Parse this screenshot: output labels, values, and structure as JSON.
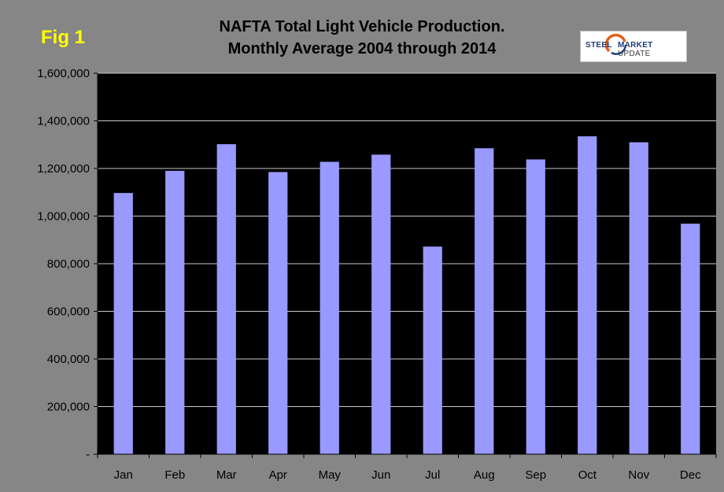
{
  "fig_label": "Fig 1",
  "title_line1": "NAFTA Total Light Vehicle Production.",
  "title_line2": "Monthly Average 2004 through 2014",
  "logo": {
    "word1": "STEEL",
    "word2": "MARKET",
    "word3": "UPDATE"
  },
  "colors": {
    "background": "#868686",
    "plot_area": "#000000",
    "bar": "#9999ff",
    "gridline": "#c8c8c8",
    "fig_label": "#ffff00"
  },
  "chart_data": {
    "type": "bar",
    "title": "NAFTA Total Light Vehicle Production. Monthly Average 2004 through 2014",
    "categories": [
      "Jan",
      "Feb",
      "Mar",
      "Apr",
      "May",
      "Jun",
      "Jul",
      "Aug",
      "Sep",
      "Oct",
      "Nov",
      "Dec"
    ],
    "values": [
      1097000,
      1190000,
      1302000,
      1185000,
      1228000,
      1258000,
      872000,
      1285000,
      1238000,
      1335000,
      1310000,
      968000
    ],
    "ylim": [
      0,
      1600000
    ],
    "yticks": [
      0,
      200000,
      400000,
      600000,
      800000,
      1000000,
      1200000,
      1400000,
      1600000
    ],
    "ytick_labels": [
      "-",
      "200,000",
      "400,000",
      "600,000",
      "800,000",
      "1,000,000",
      "1,200,000",
      "1,400,000",
      "1,600,000"
    ],
    "grid": true,
    "xlabel": "",
    "ylabel": ""
  }
}
